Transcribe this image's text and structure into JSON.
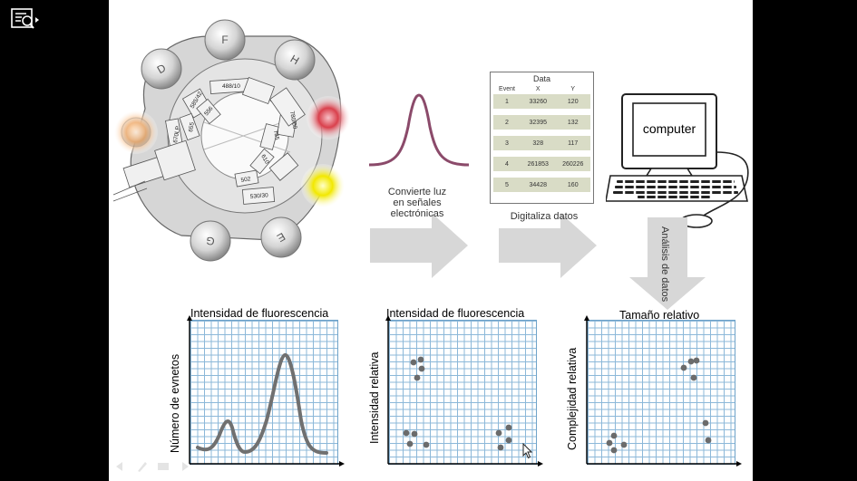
{
  "slide": {
    "cytometer": {
      "lasers": [
        "D",
        "F",
        "H",
        "E",
        "G"
      ],
      "filters": [
        "488/10",
        "585/42",
        "556",
        "655",
        "670LP",
        "780/60",
        "735",
        "610",
        "502",
        "530/30"
      ]
    },
    "step1_caption": [
      "Convierte luz",
      "en señales",
      "electrónicas"
    ],
    "step2_caption": "Digitaliza datos",
    "step3_caption": "Análisis de datos",
    "data_table": {
      "title": "Data",
      "headers": [
        "Event",
        "X",
        "Y"
      ],
      "rows": [
        [
          "1",
          "33260",
          "120"
        ],
        [
          "2",
          "32395",
          "132"
        ],
        [
          "3",
          "328",
          "117"
        ],
        [
          "4",
          "261853",
          "260226"
        ],
        [
          "5",
          "34428",
          "160"
        ]
      ]
    },
    "computer_label": "computer",
    "plots": [
      {
        "title": "Intensidad de fluorescencia",
        "ylabel": "Número de evnetos"
      },
      {
        "title": "Intensidad de fluorescencia",
        "ylabel": "Intensidad relativa"
      },
      {
        "title": "Tamaño relativo",
        "ylabel": "Complejidad relativa"
      }
    ]
  },
  "toolbar": {
    "icon": "presentation-search-icon"
  }
}
